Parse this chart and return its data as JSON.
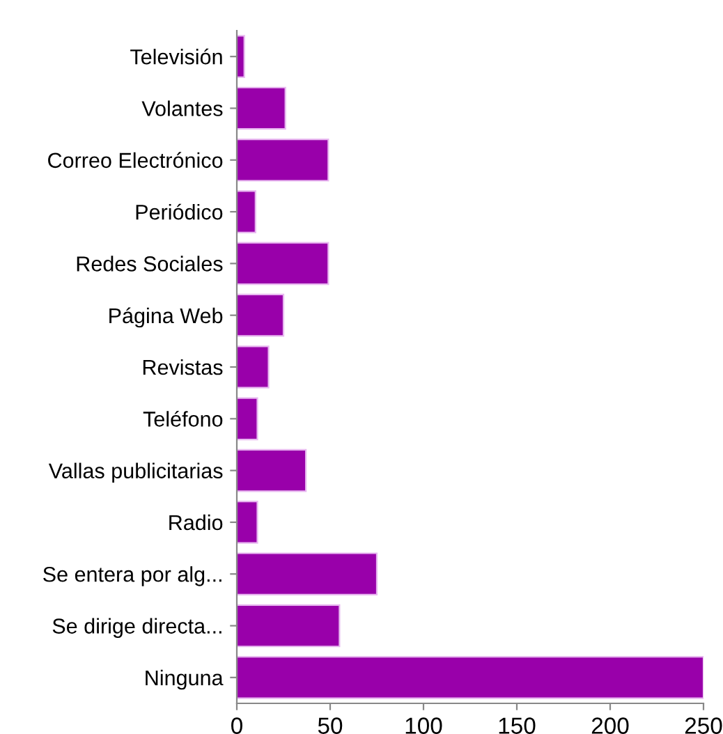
{
  "chart_data": {
    "type": "bar",
    "orientation": "horizontal",
    "categories": [
      "Televisión",
      "Volantes",
      "Correo Electrónico",
      "Periódico",
      "Redes Sociales",
      "Página Web",
      "Revistas",
      "Teléfono",
      "Vallas publicitarias",
      "Radio",
      "Se entera por alg...",
      "Se dirige directa...",
      "Ninguna"
    ],
    "values": [
      4,
      26,
      49,
      10,
      49,
      25,
      17,
      11,
      37,
      11,
      75,
      55,
      250
    ],
    "color": "#9900aa",
    "xlim": [
      0,
      250
    ],
    "xticks": [
      0,
      50,
      100,
      150,
      200,
      250
    ],
    "grid": false
  }
}
